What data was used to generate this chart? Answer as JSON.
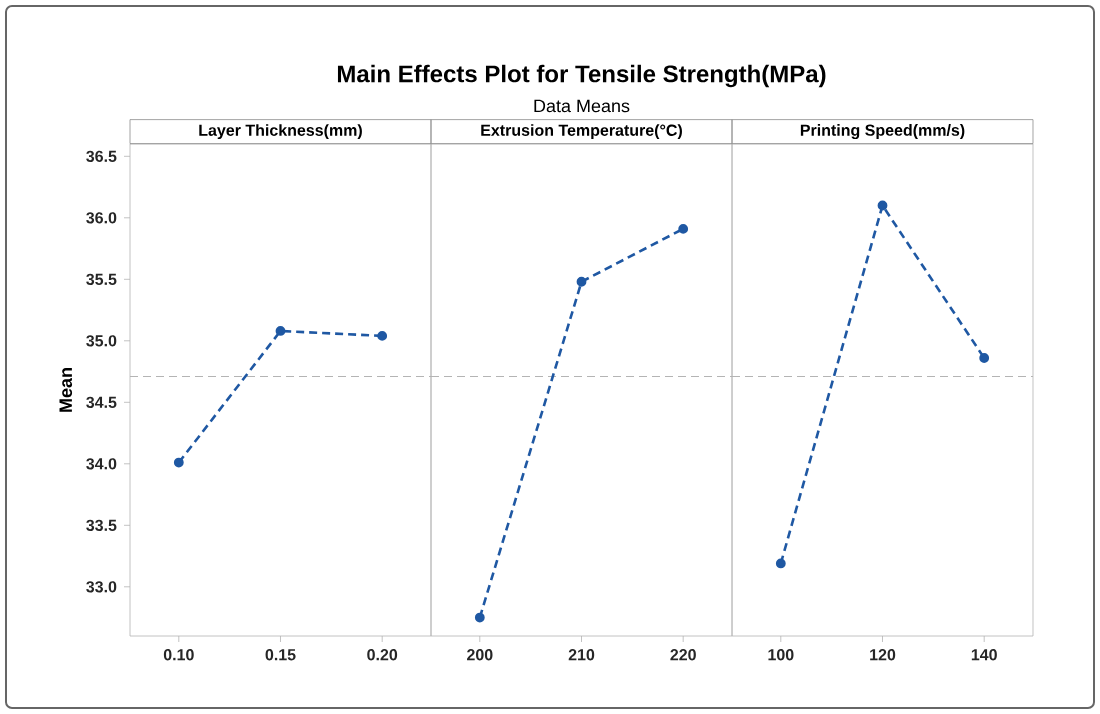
{
  "chart_data": [
    {
      "type": "line",
      "title": "Layer Thickness(mm)",
      "ylabel": "Mean",
      "annotations": [
        "Main Effects Plot for Tensile Strength(MPa)",
        "Data Means"
      ],
      "categories": [
        "0.10",
        "0.15",
        "0.20"
      ],
      "values": [
        34.01,
        35.08,
        35.04
      ],
      "color": "#1f58a3",
      "ylim": [
        32.6,
        36.6
      ],
      "yticks": [
        {
          "value": 33,
          "label": "33.0"
        },
        {
          "value": 33.5,
          "label": "33.5"
        },
        {
          "value": 34,
          "label": "34.0"
        },
        {
          "value": 34.5,
          "label": "34.5"
        },
        {
          "value": 35,
          "label": "35.0"
        },
        {
          "value": 35.5,
          "label": "35.5"
        },
        {
          "value": 36,
          "label": "36.0"
        },
        {
          "value": 36.5,
          "label": "36.5"
        }
      ],
      "ref_lines": [
        {
          "axis": "y",
          "value": 34.71,
          "color": "#b4b4b4",
          "line_style": "dashed"
        }
      ],
      "marker": "circle",
      "line_style": "dashed",
      "grid": false
    },
    {
      "type": "line",
      "title": "Extrusion Temperature(°C)",
      "categories": [
        "200",
        "210",
        "220"
      ],
      "values": [
        32.75,
        35.48,
        35.91
      ],
      "color": "#1f58a3",
      "ylim": [
        32.6,
        36.6
      ],
      "tick_labels": "x",
      "ref_lines": [
        {
          "axis": "y",
          "value": 34.71,
          "color": "#b4b4b4",
          "line_style": "dashed"
        }
      ],
      "marker": "circle",
      "line_style": "dashed",
      "grid": false
    },
    {
      "type": "line",
      "title": "Printing Speed(mm/s)",
      "categories": [
        "100",
        "120",
        "140"
      ],
      "values": [
        33.19,
        36.1,
        34.86
      ],
      "color": "#1f58a3",
      "ylim": [
        32.6,
        36.6
      ],
      "tick_labels": "x",
      "ref_lines": [
        {
          "axis": "y",
          "value": 34.71,
          "color": "#b4b4b4",
          "line_style": "dashed"
        }
      ],
      "marker": "circle",
      "line_style": "dashed",
      "grid": false
    }
  ]
}
